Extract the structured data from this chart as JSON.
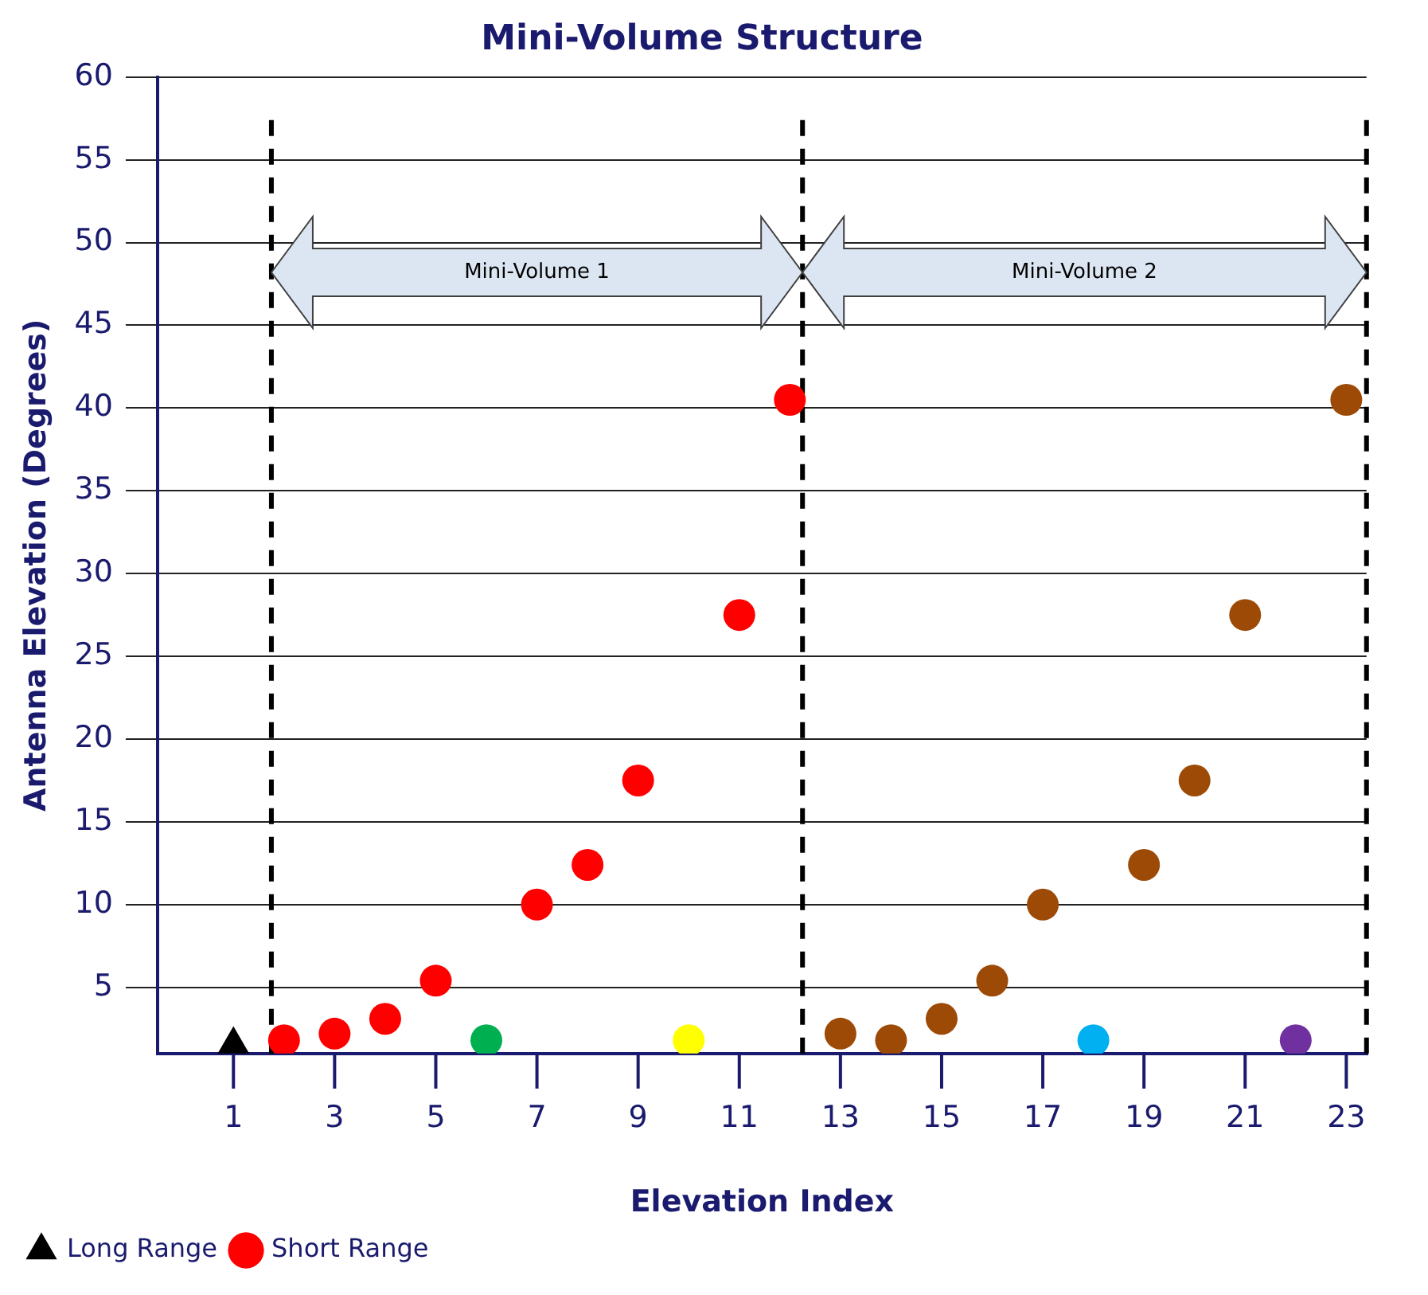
{
  "chart_data": {
    "type": "scatter",
    "title": "Mini-Volume Structure",
    "xlabel": "Elevation Index",
    "ylabel": "Antenna Elevation (Degrees)",
    "series": [
      {
        "name": "Long Range",
        "color": "#000000",
        "marker": "triangle",
        "x": [
          1
        ],
        "values": [
          1.5
        ]
      },
      {
        "name": "Short Range",
        "color": "#ff0000",
        "x": [
          2,
          3,
          4,
          5,
          6,
          7,
          8,
          9,
          10,
          11,
          12
        ],
        "values": [
          1.8,
          2.2,
          3.1,
          5.4,
          1.8,
          10,
          12.4,
          17.5,
          1.8,
          27.5,
          40.5
        ],
        "colors": [
          "#ff0000",
          "#ff0000",
          "#ff0000",
          "#ff0000",
          "#00b050",
          "#ff0000",
          "#ff0000",
          "#ff0000",
          "#ffff00",
          "#ff0000",
          "#ff0000"
        ]
      },
      {
        "color": "#9c4a06",
        "x": [
          13,
          14,
          15,
          16,
          17,
          18,
          19,
          20,
          21,
          22,
          23
        ],
        "values": [
          2.2,
          1.8,
          3.1,
          5.4,
          10,
          1.8,
          12.4,
          17.5,
          27.5,
          1.8,
          40.5
        ],
        "colors": [
          "#9c4a06",
          "#9c4a06",
          "#9c4a06",
          "#9c4a06",
          "#9c4a06",
          "#00b0f0",
          "#9c4a06",
          "#9c4a06",
          "#9c4a06",
          "#7030a0",
          "#9c4a06"
        ]
      }
    ],
    "marker": "circle",
    "xlim": [
      -0.5,
      23.4
    ],
    "xticks": [
      1,
      3,
      5,
      7,
      9,
      11,
      13,
      15,
      17,
      19,
      21,
      23
    ],
    "ylim": [
      1,
      60
    ],
    "yticks": [
      5,
      10,
      15,
      20,
      25,
      30,
      35,
      40,
      45,
      50,
      55,
      60
    ],
    "ref_lines": [
      {
        "axis": "x",
        "value": 1.75,
        "color": "#000000",
        "line_style": "dashed"
      },
      {
        "axis": "x",
        "value": 12.25,
        "color": "#000000",
        "line_style": "dashed"
      },
      {
        "axis": "x",
        "value": 23.4,
        "color": "#000000",
        "line_style": "dashed"
      }
    ],
    "annotations": [
      "Mini-Volume 1",
      "Mini-Volume 2"
    ],
    "grid": "y",
    "legend": "bottom left"
  }
}
